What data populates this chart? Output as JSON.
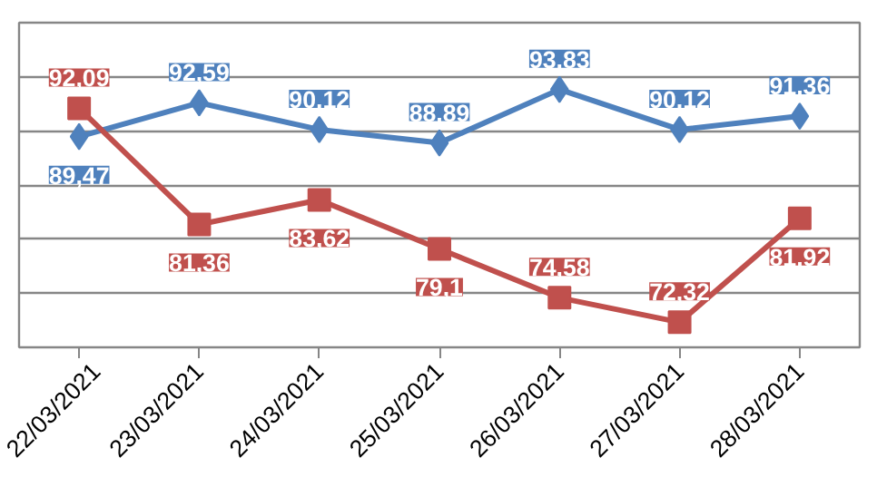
{
  "chart_data": {
    "type": "line",
    "categories": [
      "22/03/2021",
      "23/03/2021",
      "24/03/2021",
      "25/03/2021",
      "26/03/2021",
      "27/03/2021",
      "28/03/2021"
    ],
    "series": [
      {
        "color": "#4f81bd",
        "marker": "diamond",
        "values": [
          89.47,
          92.59,
          90.12,
          88.89,
          93.83,
          90.12,
          91.36
        ],
        "value_labels": [
          "89,47",
          "92,59",
          "90,12",
          "88,89",
          "93,83",
          "90,12",
          "91,36"
        ]
      },
      {
        "color": "#c0504d",
        "marker": "square",
        "values": [
          92.09,
          81.36,
          83.62,
          79.1,
          74.58,
          72.32,
          81.92
        ],
        "value_labels": [
          "92,09",
          "81,36",
          "83,62",
          "79,1",
          "74,58",
          "72,32",
          "81,92"
        ]
      }
    ],
    "ylim": [
      70,
      100
    ],
    "yticks": [
      {
        "value": 70,
        "label": null
      },
      {
        "value": 75,
        "label": null
      },
      {
        "value": 80,
        "label": null
      },
      {
        "value": 85,
        "label": null
      },
      {
        "value": 90,
        "label": null
      },
      {
        "value": 95,
        "label": null
      },
      {
        "value": 100,
        "label": null
      }
    ],
    "grid": "y",
    "tick_labels": "x",
    "line_style": "solid"
  }
}
